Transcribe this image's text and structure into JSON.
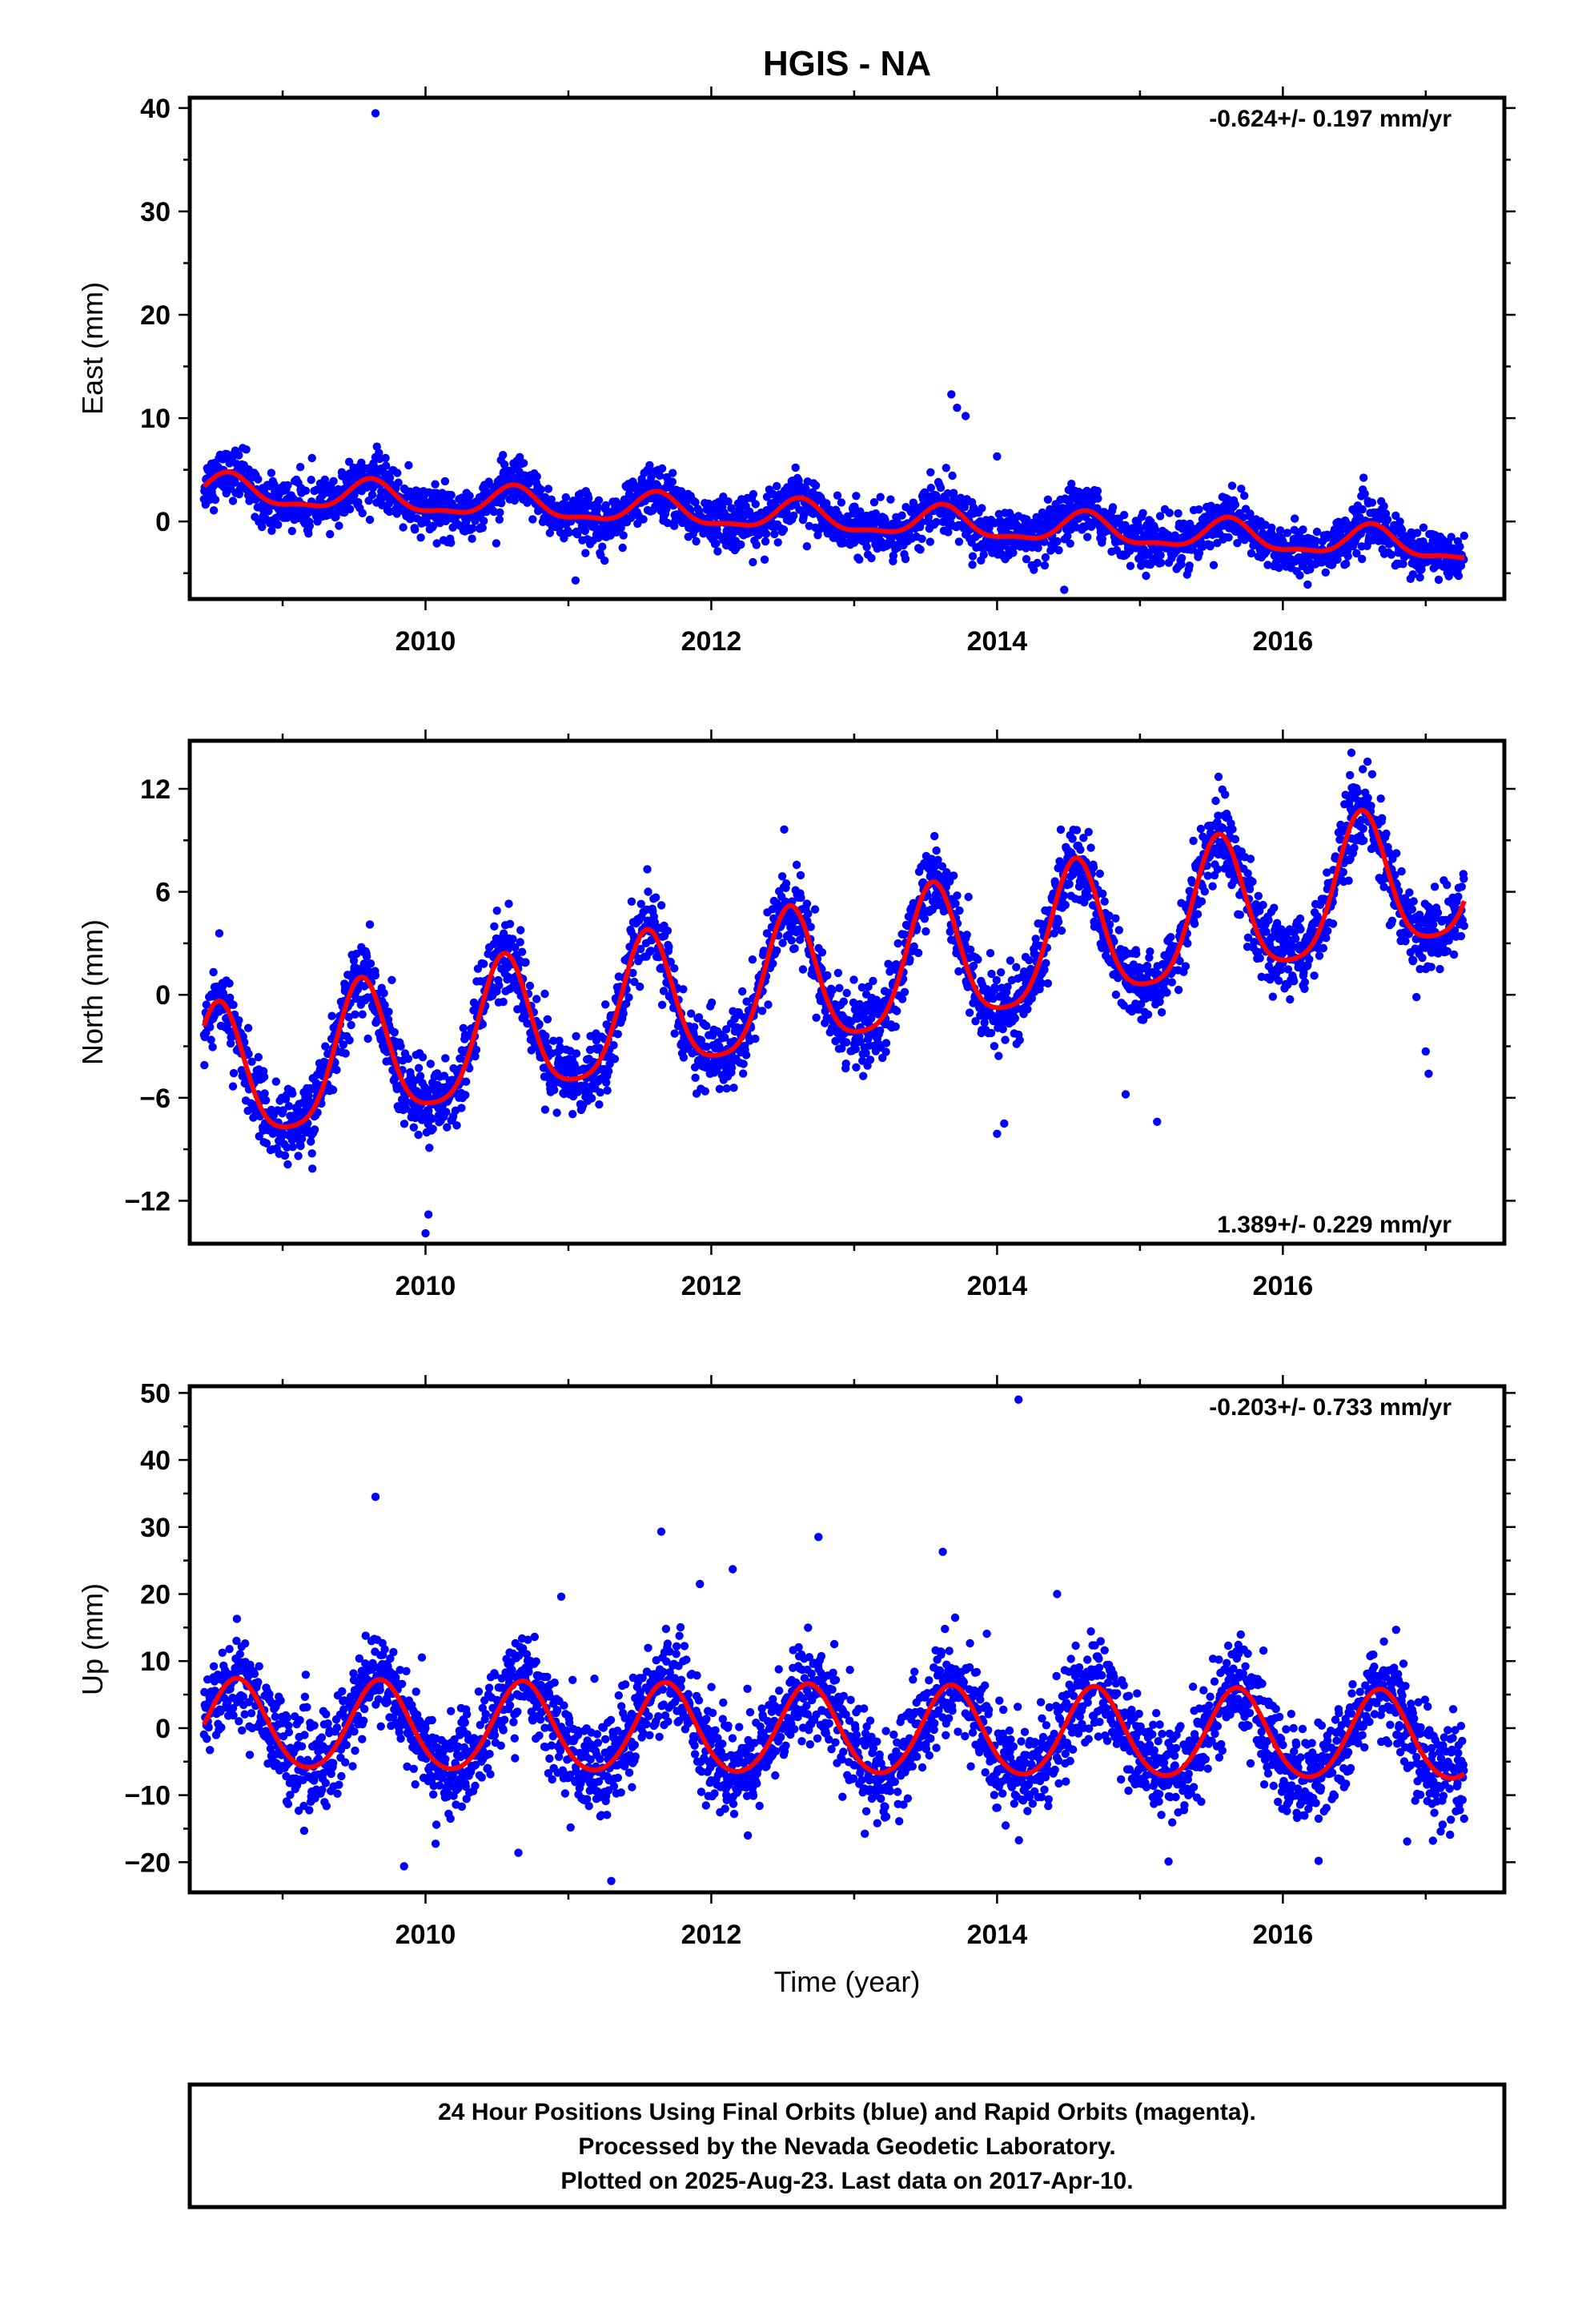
{
  "chart_data": {
    "type": "scatter",
    "title": "HGIS - NA",
    "x_range": [
      2008.35,
      2017.55
    ],
    "x_ticks": [
      2010,
      2012,
      2014,
      2016
    ],
    "x_tick_labels": [
      "2010",
      "2012",
      "2014",
      "2016"
    ],
    "xlabel": "Time (year)",
    "data_start": 2008.45,
    "data_end": 2017.27,
    "point_color": "#0000ff",
    "model_color": "#ff0000",
    "grid": false,
    "panels": [
      {
        "id": "east",
        "ylabel": "East (mm)",
        "ylim": [
          -7.5,
          41
        ],
        "y_ticks": [
          0,
          10,
          20,
          30,
          40
        ],
        "y_tick_labels": [
          "0",
          "10",
          "20",
          "30",
          "40"
        ],
        "rate_label": "-0.624+/- 0.197 mm/yr",
        "rate_position": "top-right",
        "model": {
          "offset": 3.0,
          "rate": -0.624,
          "amp": 1.4,
          "phase_peak": 0.62,
          "semi_amp": 0.5
        },
        "scatter_sd": 1.2,
        "outliers": [
          [
            2009.65,
            39.5
          ],
          [
            2013.68,
            12.3
          ],
          [
            2013.72,
            11.0
          ],
          [
            2013.78,
            10.2
          ],
          [
            2014.0,
            6.3
          ],
          [
            2011.05,
            -5.7
          ],
          [
            2014.47,
            -6.6
          ]
        ]
      },
      {
        "id": "north",
        "ylabel": "North (mm)",
        "ylim": [
          -14.5,
          14.8
        ],
        "y_ticks": [
          -12,
          -6,
          0,
          6,
          12
        ],
        "y_tick_labels": [
          "−12",
          "−6",
          "0",
          "6",
          "12"
        ],
        "rate_label": "1.389+/- 0.229 mm/yr",
        "rate_position": "bottom-right",
        "model": {
          "offset": -5.3,
          "rate": 1.389,
          "amp": 4.0,
          "phase_peak": 0.55,
          "semi_amp": 0.8
        },
        "scatter_sd": 1.1,
        "outliers": [
          [
            2010.0,
            -13.9
          ],
          [
            2010.02,
            -12.8
          ],
          [
            2010.5,
            4.9
          ],
          [
            2014.0,
            -8.1
          ],
          [
            2014.05,
            -7.5
          ],
          [
            2014.9,
            -5.8
          ],
          [
            2015.12,
            -7.4
          ],
          [
            2016.48,
            14.1
          ],
          [
            2016.47,
            12.8
          ],
          [
            2017.0,
            -3.3
          ],
          [
            2017.02,
            -4.6
          ],
          [
            2015.55,
            12.7
          ],
          [
            2013.8,
            5.7
          ]
        ]
      },
      {
        "id": "up",
        "ylabel": "Up (mm)",
        "ylim": [
          -24.5,
          51
        ],
        "y_ticks": [
          -20,
          -10,
          0,
          10,
          20,
          30,
          40,
          50
        ],
        "y_tick_labels": [
          "−20",
          "−10",
          "0",
          "10",
          "20",
          "30",
          "40",
          "50"
        ],
        "rate_label": "-0.203+/- 0.733 mm/yr",
        "rate_position": "top-right",
        "model": {
          "offset": 0.3,
          "rate": -0.203,
          "amp": 6.6,
          "phase_peak": 0.68,
          "semi_amp": 0.6
        },
        "scatter_sd": 3.6,
        "outliers": [
          [
            2014.15,
            49.0
          ],
          [
            2009.65,
            34.5
          ],
          [
            2011.65,
            29.3
          ],
          [
            2012.75,
            28.5
          ],
          [
            2013.62,
            26.3
          ],
          [
            2012.15,
            23.7
          ],
          [
            2011.92,
            21.5
          ],
          [
            2010.95,
            19.6
          ],
          [
            2014.42,
            20.0
          ],
          [
            2009.85,
            -20.6
          ],
          [
            2011.3,
            -22.8
          ],
          [
            2015.2,
            -19.9
          ],
          [
            2016.25,
            -19.8
          ],
          [
            2010.65,
            -18.6
          ],
          [
            2016.87,
            -16.9
          ],
          [
            2017.05,
            -16.8
          ]
        ]
      }
    ]
  },
  "footer": {
    "lines": [
      "24 Hour Positions Using Final Orbits (blue) and Rapid Orbits (magenta).",
      "Processed by the Nevada Geodetic Laboratory.",
      "Plotted on 2025-Aug-23. Last data on 2017-Apr-10."
    ]
  }
}
